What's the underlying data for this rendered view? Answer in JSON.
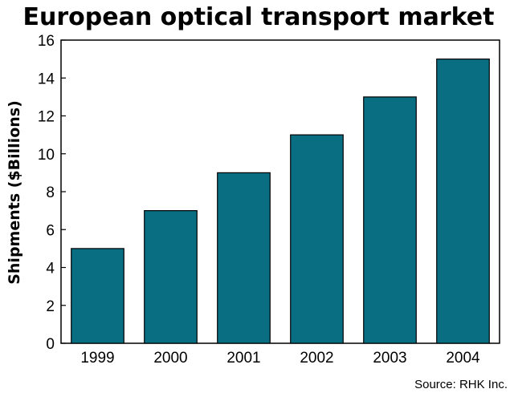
{
  "chart_data": {
    "type": "bar",
    "title": "European optical transport market",
    "ylabel": "Shipments ($Billions)",
    "xlabel": "",
    "categories": [
      "1999",
      "2000",
      "2001",
      "2002",
      "2003",
      "2004"
    ],
    "values": [
      5,
      7,
      9,
      11,
      13,
      15
    ],
    "ylim": [
      0,
      16
    ],
    "yticks": [
      0,
      2,
      4,
      6,
      8,
      10,
      12,
      14,
      16
    ],
    "grid": false,
    "bar_color": "#0a6e82",
    "source": "Source: RHK Inc."
  }
}
